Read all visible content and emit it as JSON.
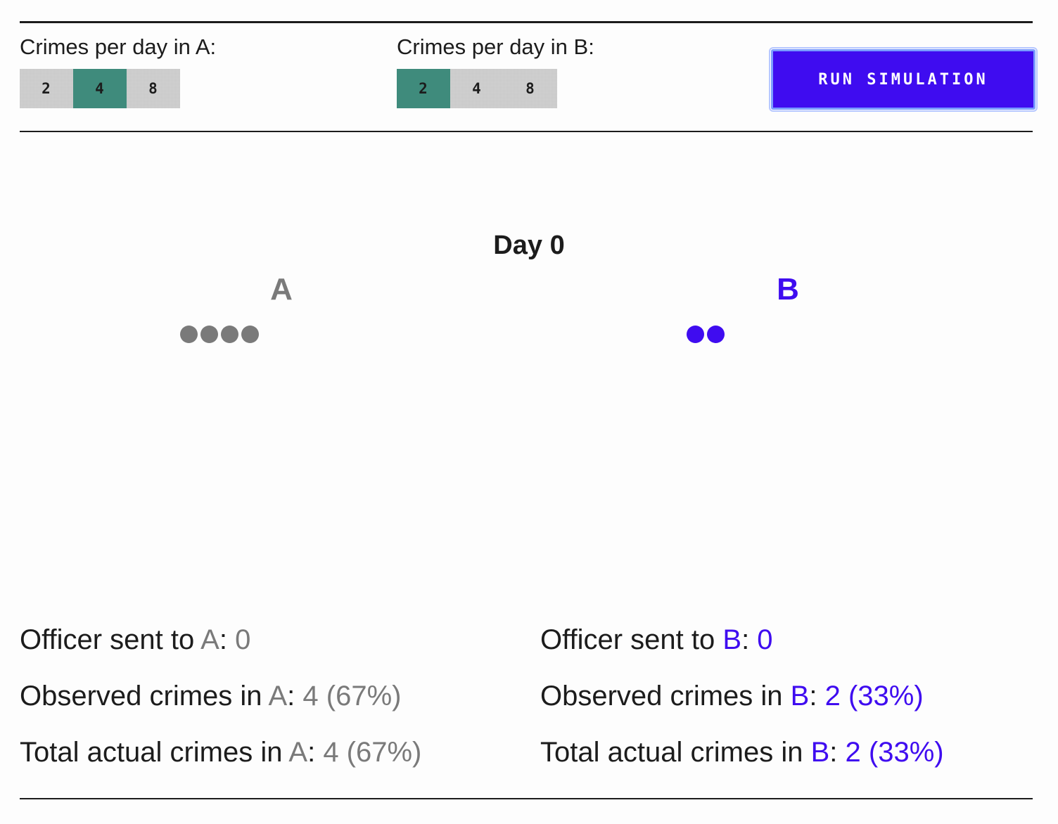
{
  "controls": {
    "a": {
      "label": "Crimes per day in A:",
      "options": [
        "2",
        "4",
        "8"
      ],
      "selected": "4"
    },
    "b": {
      "label": "Crimes per day in B:",
      "options": [
        "2",
        "4",
        "8"
      ],
      "selected": "2"
    },
    "run_button": "RUN SIMULATION"
  },
  "simulation": {
    "day_label": "Day 0",
    "district_a": {
      "name": "A",
      "crime_dots": 4
    },
    "district_b": {
      "name": "B",
      "crime_dots": 2
    }
  },
  "stats": {
    "a": {
      "officer_prefix": "Officer sent to ",
      "officer_name": "A",
      "officer_value": "0",
      "observed_prefix": "Observed crimes in ",
      "observed_name": "A",
      "observed_value": "4 (67%)",
      "total_prefix": "Total actual crimes in ",
      "total_name": "A",
      "total_value": "4 (67%)"
    },
    "b": {
      "officer_prefix": "Officer sent to ",
      "officer_name": "B",
      "officer_value": "0",
      "observed_prefix": "Observed crimes in ",
      "observed_name": "B",
      "observed_value": "2 (33%)",
      "total_prefix": "Total actual crimes in ",
      "total_name": "B",
      "total_value": "2 (33%)"
    },
    "separator": ": "
  },
  "colors": {
    "district_a": "#7a7a7a",
    "district_b": "#3f0cf0",
    "selected_option": "#3f8b7c",
    "unselected_option": "#c6c6c6",
    "run_button": "#3f0cf0"
  }
}
